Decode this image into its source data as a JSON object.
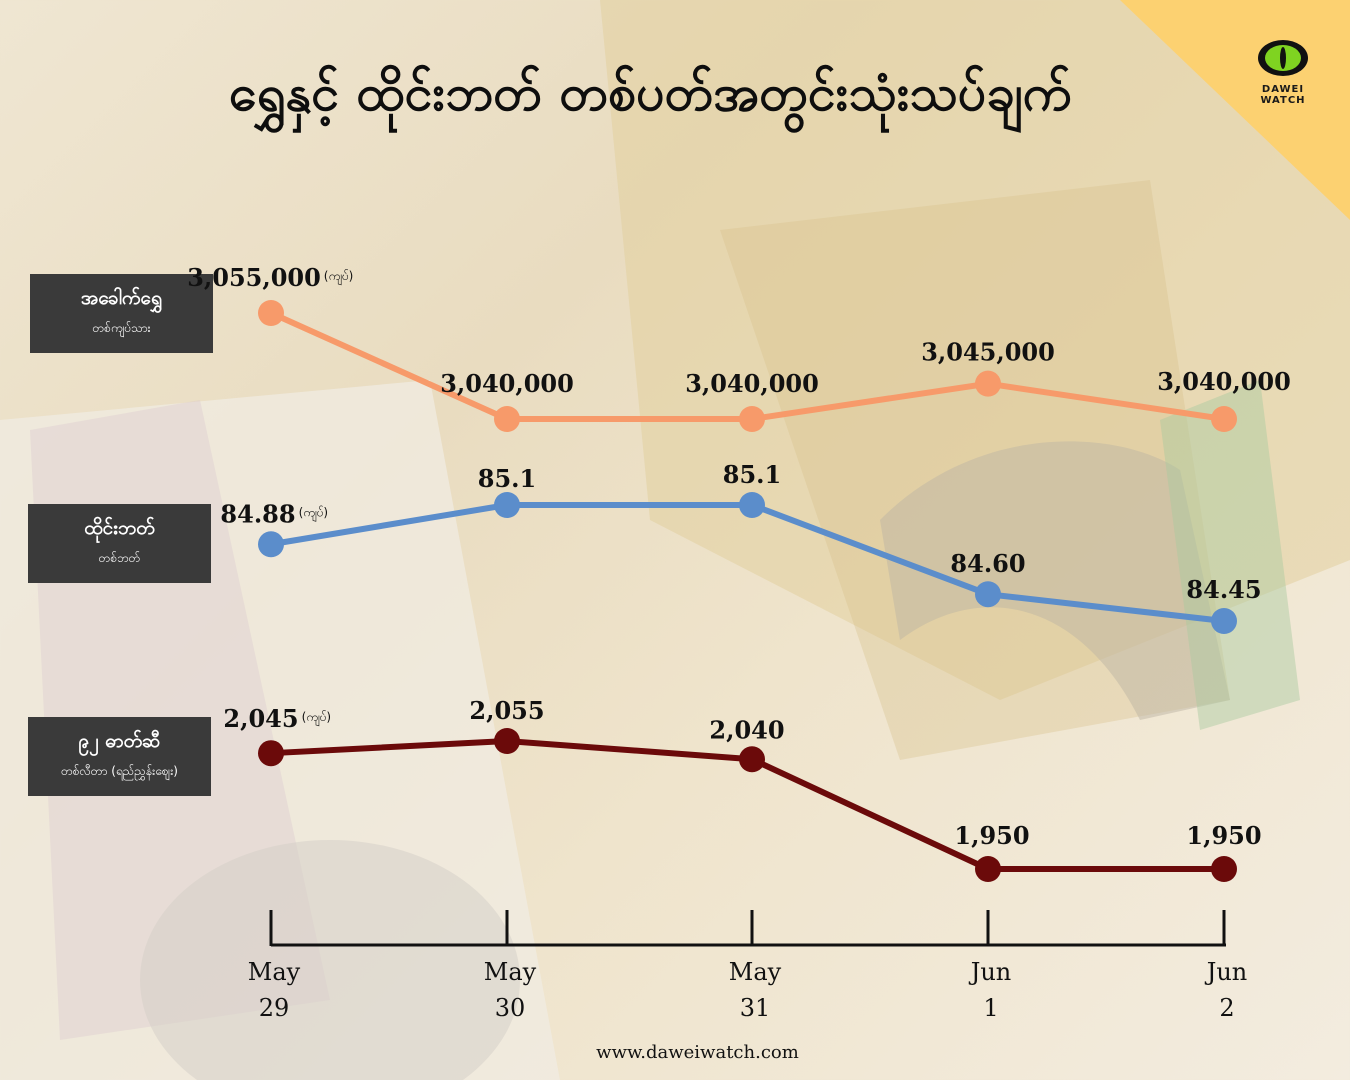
{
  "title": "ရွှေနှင့် ထိုင်းဘတ် တစ်ပတ်အတွင်းသုံးသပ်ချက်",
  "brand": "DAWEI WATCH",
  "footer": "www.daweiwatch.com",
  "unit_label": "(ကျပ်)",
  "colors": {
    "gold": "#f79a6a",
    "baht": "#5b8dcb",
    "fuel": "#6b0a0a",
    "corner": "#fcd171"
  },
  "chart_data": {
    "type": "line",
    "categories": [
      "May 29",
      "May 30",
      "May 31",
      "Jun 1",
      "Jun 2"
    ],
    "category_lines": [
      [
        "May",
        "29"
      ],
      [
        "May",
        "30"
      ],
      [
        "May",
        "31"
      ],
      [
        "Jun",
        "1"
      ],
      [
        "Jun",
        "2"
      ]
    ],
    "series": [
      {
        "name": "အခေါက်ရွှေ",
        "sublabel": "တစ်ကျပ်သား",
        "values": [
          3055000,
          3040000,
          3040000,
          3045000,
          3040000
        ],
        "labels": [
          "3,055,000",
          "3,040,000",
          "3,040,000",
          "3,045,000",
          "3,040,000"
        ]
      },
      {
        "name": "ထိုင်းဘတ်",
        "sublabel": "တစ်ဘတ်",
        "values": [
          84.88,
          85.1,
          85.1,
          84.6,
          84.45
        ],
        "labels": [
          "84.88",
          "85.1",
          "85.1",
          "84.60",
          "84.45"
        ]
      },
      {
        "name": "၉၂ ဓာတ်ဆီ",
        "sublabel": "တစ်လီတာ (ရည်ညွှန်းဈေး)",
        "values": [
          2045,
          2055,
          2040,
          1950,
          1950
        ],
        "labels": [
          "2,045",
          "2,055",
          "2,040",
          "1,950",
          "1,950"
        ]
      }
    ]
  }
}
